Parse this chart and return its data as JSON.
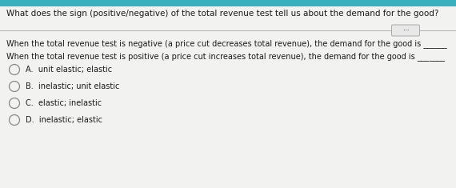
{
  "bg_color": "#dcdcdc",
  "card_color": "#f2f2f0",
  "header_strip_color": "#3aafbe",
  "title": "What does the sign (positive/negative) of the total revenue test tell us about the demand for the good?",
  "line1": "When the total revenue test is negative (a price cut decreases total revenue), the demand for the good is ______",
  "line2": "When the total revenue test is positive (a price cut increases total revenue), the demand for the good is _______",
  "options": [
    "A.  unit elastic; elastic",
    "B.  inelastic; unit elastic",
    "C.  elastic; inelastic",
    "D.  inelastic; elastic"
  ],
  "title_fontsize": 7.5,
  "body_fontsize": 7.0,
  "option_fontsize": 7.0,
  "text_color": "#1a1a1a",
  "divider_color": "#b0b0b0",
  "radio_edge_color": "#888888",
  "dots_box_color": "#e8e8e8",
  "dots_box_edge": "#aaaaaa"
}
